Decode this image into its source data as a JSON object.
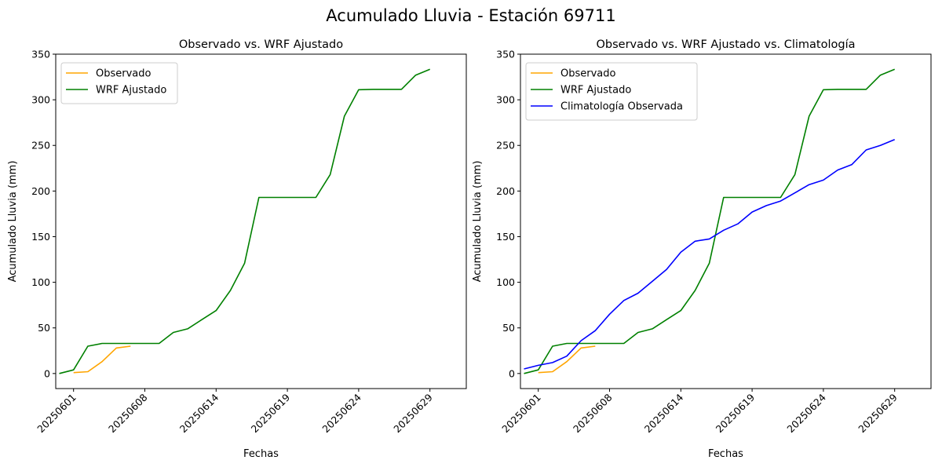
{
  "figure": {
    "suptitle": "Acumulado Lluvia - Estación 69711"
  },
  "chart_data": [
    {
      "type": "line",
      "title": "Observado vs. WRF Ajustado",
      "xlabel": "Fechas",
      "ylabel": "Acumulado Lluvia (mm)",
      "xtick_labels": [
        "20250601",
        "20250608",
        "20250614",
        "20250619",
        "20250624",
        "20250629"
      ],
      "xtick_days": [
        1,
        6,
        11,
        16,
        21,
        26
      ],
      "xlim_days": [
        -0.25,
        28.55
      ],
      "ylim": [
        -16.5,
        350
      ],
      "yticks": [
        0,
        50,
        100,
        150,
        200,
        250,
        300,
        350
      ],
      "legend": "top-left",
      "series": [
        {
          "name": "Observado",
          "color": "#ffa500",
          "x_days": [
            1,
            2,
            3,
            4,
            5
          ],
          "values": [
            1,
            2,
            13,
            28,
            30
          ]
        },
        {
          "name": "WRF Ajustado",
          "color": "#008000",
          "x_days": [
            0,
            1,
            2,
            3,
            4,
            5,
            6,
            7,
            8,
            9,
            10,
            11,
            12,
            13,
            14,
            15,
            16,
            17,
            18,
            19,
            20,
            21,
            22,
            23,
            24,
            25,
            26,
            27
          ],
          "values": [
            0,
            4,
            30,
            33,
            33,
            33,
            33,
            33,
            45,
            49,
            59,
            69,
            91,
            121,
            193,
            193,
            193,
            193,
            193,
            218,
            282,
            311,
            311.5,
            311.5,
            311.5,
            327,
            333.5,
            null
          ]
        }
      ]
    },
    {
      "type": "line",
      "title": "Observado vs. WRF Ajustado vs. Climatología",
      "xlabel": "Fechas",
      "ylabel": "Acumulado Lluvia (mm)",
      "xtick_labels": [
        "20250601",
        "20250608",
        "20250614",
        "20250619",
        "20250624",
        "20250629"
      ],
      "xtick_days": [
        1,
        6,
        11,
        16,
        21,
        26
      ],
      "xlim_days": [
        -0.25,
        28.55
      ],
      "ylim": [
        -16.5,
        350
      ],
      "yticks": [
        0,
        50,
        100,
        150,
        200,
        250,
        300,
        350
      ],
      "legend": "top-left",
      "series": [
        {
          "name": "Observado",
          "color": "#ffa500",
          "x_days": [
            1,
            2,
            3,
            4,
            5
          ],
          "values": [
            1,
            2,
            13,
            28,
            30
          ]
        },
        {
          "name": "WRF Ajustado",
          "color": "#008000",
          "x_days": [
            0,
            1,
            2,
            3,
            4,
            5,
            6,
            7,
            8,
            9,
            10,
            11,
            12,
            13,
            14,
            15,
            16,
            17,
            18,
            19,
            20,
            21,
            22,
            23,
            24,
            25,
            26,
            27
          ],
          "values": [
            0,
            4,
            30,
            33,
            33,
            33,
            33,
            33,
            45,
            49,
            59,
            69,
            91,
            121,
            193,
            193,
            193,
            193,
            193,
            218,
            282,
            311,
            311.5,
            311.5,
            311.5,
            327,
            333.5,
            null
          ]
        },
        {
          "name": "Climatología Observada",
          "color": "#0000ff",
          "x_days": [
            0,
            1,
            2,
            3,
            4,
            5,
            6,
            7,
            8,
            9,
            10,
            11,
            12,
            13,
            14,
            15,
            16,
            17,
            18,
            19,
            20,
            21,
            22,
            23,
            24,
            25,
            26,
            27
          ],
          "values": [
            5,
            9,
            12,
            19,
            36,
            47,
            65,
            80,
            88,
            101,
            114,
            133,
            145,
            147.5,
            157,
            164,
            177,
            184,
            189,
            198,
            207,
            212,
            223,
            229,
            245,
            250,
            256.5,
            null
          ]
        }
      ]
    }
  ]
}
